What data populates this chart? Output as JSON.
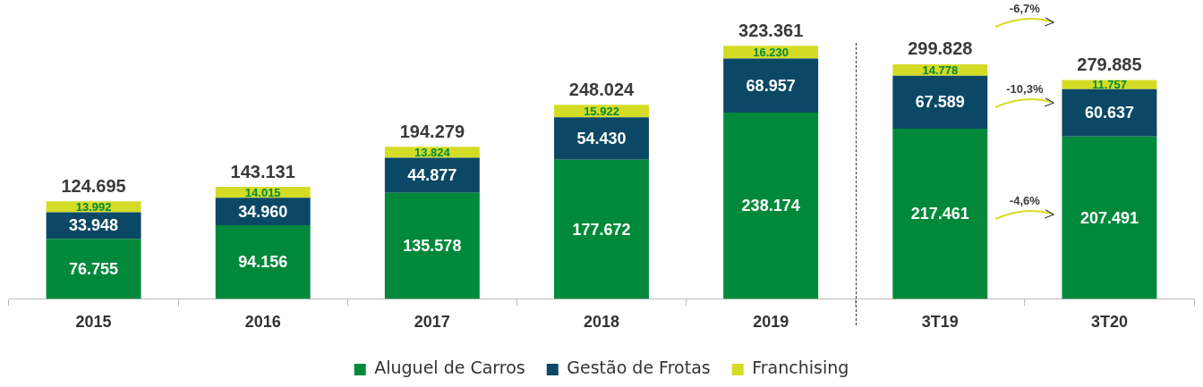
{
  "chart_data": {
    "type": "bar",
    "stacked": true,
    "legend": "bottom",
    "grid": false,
    "categories": [
      "2015",
      "2016",
      "2017",
      "2018",
      "2019",
      "3T19",
      "3T20"
    ],
    "series": [
      {
        "name": "Aluguel de Carros",
        "color": "#00893a",
        "values": [
          76755,
          94156,
          135578,
          177672,
          238174,
          217461,
          207491
        ],
        "value_labels": [
          "76.755",
          "94.156",
          "135.578",
          "177.672",
          "238.174",
          "217.461",
          "207.491"
        ]
      },
      {
        "name": "Gestão de Frotas",
        "color": "#0b4866",
        "values": [
          33948,
          34960,
          44877,
          54430,
          68957,
          67589,
          60637
        ],
        "value_labels": [
          "33.948",
          "34.960",
          "44.877",
          "54.430",
          "68.957",
          "67.589",
          "60.637"
        ]
      },
      {
        "name": "Franchising",
        "color": "#d5dc26",
        "values": [
          13992,
          14015,
          13824,
          15922,
          16230,
          14778,
          11757
        ],
        "value_labels": [
          "13.992",
          "14.015",
          "13.824",
          "15.922",
          "16.230",
          "14.778",
          "11.757"
        ]
      }
    ],
    "totals": [
      "124.695",
      "143.131",
      "194.279",
      "248.024",
      "323.361",
      "299.828",
      "279.885"
    ],
    "annotations": [
      "-6,7%",
      "-10,3%",
      "-4,6%"
    ]
  }
}
